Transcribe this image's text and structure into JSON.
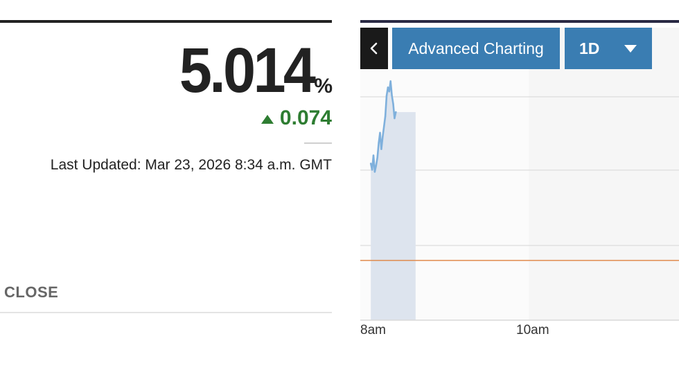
{
  "quote": {
    "price": "5.014",
    "unit": "%",
    "change": "0.074",
    "change_direction": "up",
    "last_updated": "Last Updated: Mar 23, 2026 8:34 a.m. GMT",
    "close_label": "CLOSE"
  },
  "chart_controls": {
    "back_icon": "chevron-left-icon",
    "advanced_label": "Advanced Charting",
    "range_label": "1D",
    "range_icon": "caret-down-icon"
  },
  "colors": {
    "positive": "#2e7d32",
    "button_blue": "#3a7db2",
    "series_line": "#7fb0dc",
    "series_fill": "#dde4ee",
    "reference_line": "#e0894a"
  },
  "chart_data": {
    "type": "line",
    "x_tick_labels": [
      "8am",
      "10am"
    ],
    "xlim": [
      "7:52",
      "11:54"
    ],
    "series": [
      {
        "values": [
          [
            "8:00",
            4.987
          ],
          [
            "8:01",
            4.984
          ],
          [
            "8:02",
            4.991
          ],
          [
            "8:03",
            4.983
          ],
          [
            "8:04",
            4.986
          ],
          [
            "8:05",
            4.99
          ],
          [
            "8:06",
            4.997
          ],
          [
            "8:07",
            5.002
          ],
          [
            "8:08",
            4.994
          ],
          [
            "8:09",
            5.0
          ],
          [
            "8:10",
            5.005
          ],
          [
            "8:11",
            5.01
          ],
          [
            "8:12",
            5.02
          ],
          [
            "8:13",
            5.024
          ],
          [
            "8:14",
            5.022
          ],
          [
            "8:15",
            5.027
          ],
          [
            "8:16",
            5.02
          ],
          [
            "8:17",
            5.016
          ],
          [
            "8:18",
            5.009
          ],
          [
            "8:19",
            5.012
          ]
        ]
      }
    ],
    "reference_line": 4.94,
    "shaded_period": [
      "8:00",
      "8:34"
    ],
    "gridlines": true
  }
}
